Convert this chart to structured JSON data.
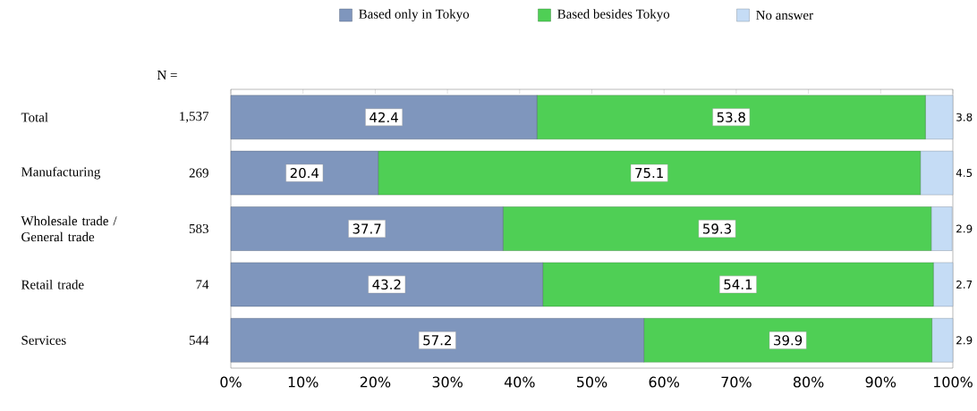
{
  "chart_data": {
    "type": "bar",
    "orientation": "horizontal",
    "stacked": true,
    "categories": [
      "Total",
      "Manufacturing",
      "Wholesale trade / General trade",
      "Retail trade",
      "Services"
    ],
    "series": [
      {
        "name": "Based only in Tokyo",
        "color": "#7f96bd",
        "values": [
          42.4,
          20.4,
          37.7,
          43.2,
          57.2
        ]
      },
      {
        "name": "Based besides Tokyo",
        "color": "#4fcf55",
        "values": [
          53.8,
          75.1,
          59.3,
          54.1,
          39.9
        ]
      },
      {
        "name": "No answer",
        "color": "#c5dcf5",
        "values": [
          3.8,
          4.5,
          2.9,
          2.7,
          2.9
        ]
      }
    ],
    "xlim": [
      0,
      100
    ],
    "xticks": [
      {
        "value": 0,
        "label": "0%"
      },
      {
        "value": 10,
        "label": "10%"
      },
      {
        "value": 20,
        "label": "20%"
      },
      {
        "value": 30,
        "label": "30%"
      },
      {
        "value": 40,
        "label": "40%"
      },
      {
        "value": 50,
        "label": "50%"
      },
      {
        "value": 60,
        "label": "60%"
      },
      {
        "value": 70,
        "label": "70%"
      },
      {
        "value": 80,
        "label": "80%"
      },
      {
        "value": 90,
        "label": "90%"
      },
      {
        "value": 100,
        "label": "100%"
      }
    ],
    "data_labels": true,
    "legend": "top",
    "grid": false,
    "annotations": [
      "N =",
      "1,537",
      "269",
      "583",
      "74",
      "544"
    ]
  }
}
